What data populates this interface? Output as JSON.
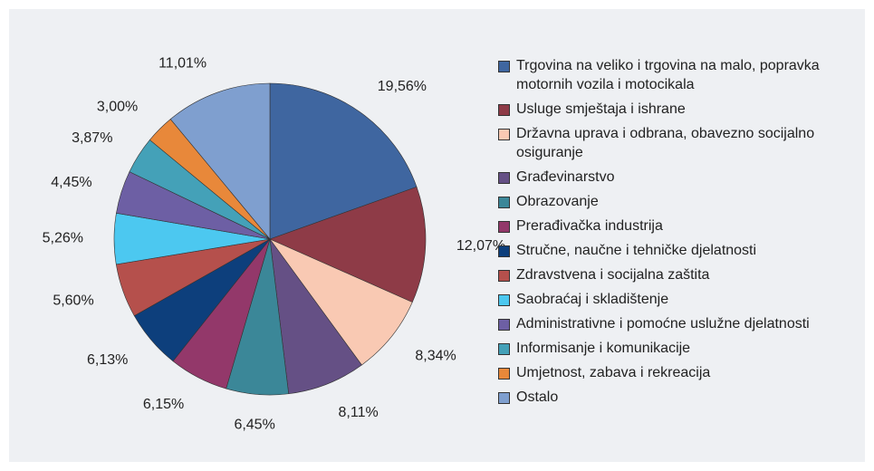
{
  "chart_data": {
    "type": "pie",
    "categories": [
      "Trgovina na veliko i trgovina na malo, popravka motornih vozila i motocikala",
      "Usluge smještaja i ishrane",
      "Državna uprava i odbrana, obavezno socijalno osiguranje",
      "Građevinarstvo",
      "Obrazovanje",
      "Prerađivačka industrija",
      "Stručne, naučne i tehničke djelatnosti",
      "Zdravstvena i socijalna zaštita",
      "Saobraćaj i skladištenje",
      "Administrativne i pomoćne uslužne djelatnosti",
      "Informisanje i komunikacije",
      "Umjetnost, zabava i rekreacija",
      "Ostalo"
    ],
    "values": [
      19.56,
      12.07,
      8.34,
      8.11,
      6.45,
      6.15,
      6.13,
      5.6,
      5.26,
      4.45,
      3.87,
      3.0,
      11.01
    ],
    "value_labels": [
      "19,56%",
      "12,07%",
      "8,34%",
      "8,11%",
      "6,45%",
      "6,15%",
      "6,13%",
      "5,60%",
      "5,26%",
      "4,45%",
      "3,87%",
      "3,00%",
      "11,01%"
    ],
    "colors": [
      "#3f66a0",
      "#8e3b47",
      "#f9c9b3",
      "#655085",
      "#3b8798",
      "#93386a",
      "#0d3f7c",
      "#b5504c",
      "#4cc8f0",
      "#6d5fa4",
      "#44a1b8",
      "#e8883a",
      "#7f9fcf"
    ],
    "legend": "right"
  }
}
